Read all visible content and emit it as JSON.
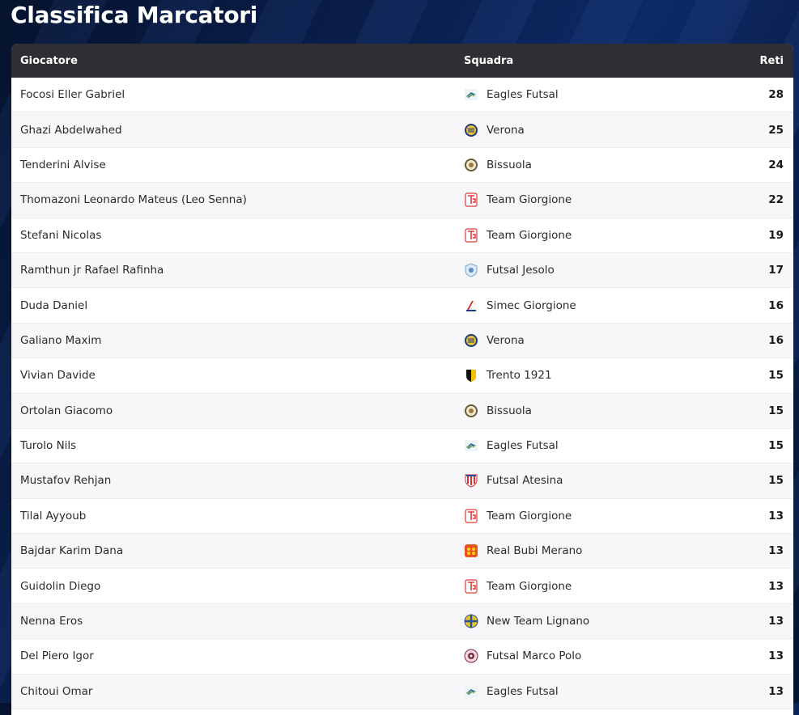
{
  "page": {
    "title": "Classifica Marcatori"
  },
  "table": {
    "headers": {
      "player": "Giocatore",
      "team": "Squadra",
      "goals": "Reti"
    },
    "rows": [
      {
        "player": "Focosi Eller Gabriel",
        "team": "Eagles Futsal",
        "logo": "eagles-logo",
        "goals": "28"
      },
      {
        "player": "Ghazi Abdelwahed",
        "team": "Verona",
        "logo": "verona-logo",
        "goals": "25"
      },
      {
        "player": "Tenderini Alvise",
        "team": "Bissuola",
        "logo": "bissuola-logo",
        "goals": "24"
      },
      {
        "player": "Thomazoni Leonardo Mateus (Leo Senna)",
        "team": "Team Giorgione",
        "logo": "team-giorgione-logo",
        "goals": "22"
      },
      {
        "player": "Stefani Nicolas",
        "team": "Team Giorgione",
        "logo": "team-giorgione-logo",
        "goals": "19"
      },
      {
        "player": "Ramthun jr Rafael Rafinha",
        "team": "Futsal Jesolo",
        "logo": "jesolo-logo",
        "goals": "17"
      },
      {
        "player": "Duda Daniel",
        "team": "Simec Giorgione",
        "logo": "simec-logo",
        "goals": "16"
      },
      {
        "player": "Galiano Maxim",
        "team": "Verona",
        "logo": "verona-logo",
        "goals": "16"
      },
      {
        "player": "Vivian Davide",
        "team": "Trento 1921",
        "logo": "trento-logo",
        "goals": "15"
      },
      {
        "player": "Ortolan Giacomo",
        "team": "Bissuola",
        "logo": "bissuola-logo",
        "goals": "15"
      },
      {
        "player": "Turolo Nils",
        "team": "Eagles Futsal",
        "logo": "eagles-logo",
        "goals": "15"
      },
      {
        "player": "Mustafov Rehjan",
        "team": "Futsal Atesina",
        "logo": "atesina-logo",
        "goals": "15"
      },
      {
        "player": "Tilal Ayyoub",
        "team": "Team Giorgione",
        "logo": "team-giorgione-logo",
        "goals": "13"
      },
      {
        "player": "Bajdar Karim Dana",
        "team": "Real Bubi Merano",
        "logo": "merano-logo",
        "goals": "13"
      },
      {
        "player": "Guidolin Diego",
        "team": "Team Giorgione",
        "logo": "team-giorgione-logo",
        "goals": "13"
      },
      {
        "player": "Nenna Eros",
        "team": "New Team Lignano",
        "logo": "lignano-logo",
        "goals": "13"
      },
      {
        "player": "Del Piero Igor",
        "team": "Futsal Marco Polo",
        "logo": "marco-polo-logo",
        "goals": "13"
      },
      {
        "player": "Chitoui Omar",
        "team": "Eagles Futsal",
        "logo": "eagles-logo",
        "goals": "13"
      }
    ]
  },
  "colors": {
    "header_bg": "#2f2f33",
    "page_bg": "#0a1f4d",
    "row_alt": "#f7f7f9"
  }
}
